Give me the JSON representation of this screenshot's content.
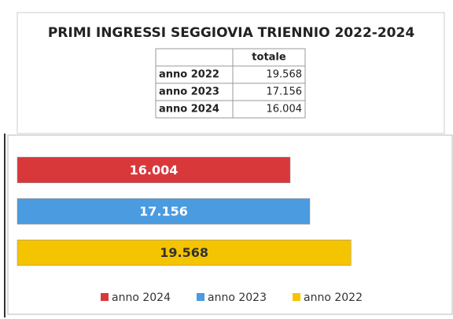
{
  "title": "PRIMI INGRESSI SEGGIOVIA TRIENNIO 2022-2024",
  "table": {
    "columns": [
      "totale"
    ],
    "rows": [
      [
        "anno 2022",
        "19.568"
      ],
      [
        "anno 2023",
        "17.156"
      ],
      [
        "anno 2024",
        "16.004"
      ]
    ]
  },
  "chart_data": {
    "type": "hbar",
    "categories": [
      "anno 2024",
      "anno 2023",
      "anno 2022"
    ],
    "values": [
      16004,
      17156,
      19568
    ],
    "value_labels": [
      "16.004",
      "17.156",
      "19.568"
    ],
    "colors": [
      "#d9383b",
      "#4a9be0",
      "#f5c400"
    ],
    "label_colors": [
      "#ffffff",
      "#ffffff",
      "#333333"
    ],
    "xlim": [
      0,
      25000
    ],
    "legend": "bottom"
  }
}
